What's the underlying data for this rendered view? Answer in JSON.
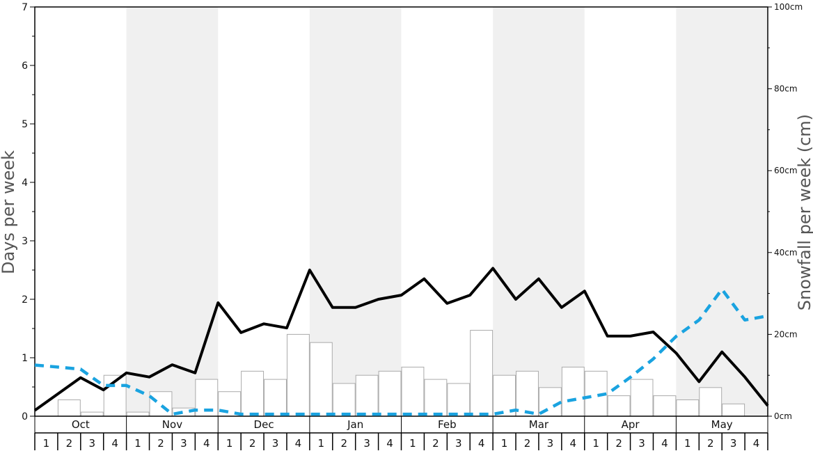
{
  "chart_data": {
    "type": "bar",
    "xlabel": "",
    "ylabel": "Days per week",
    "y2label": "Snowfall per week (cm)",
    "ylim": [
      0,
      7
    ],
    "y2lim": [
      0,
      100
    ],
    "yticks": [
      0,
      1,
      2,
      3,
      4,
      5,
      6,
      7
    ],
    "y2ticks": [
      0,
      20,
      40,
      60,
      80,
      100
    ],
    "y2tick_labels": [
      "0cm",
      "20cm",
      "40cm",
      "60cm",
      "80cm",
      "100cm"
    ],
    "months": [
      "Oct",
      "Nov",
      "Dec",
      "Jan",
      "Feb",
      "Mar",
      "Apr",
      "May"
    ],
    "week_labels": [
      "1",
      "2",
      "3",
      "4"
    ],
    "shaded_months": [
      "Nov",
      "Jan",
      "Mar",
      "May"
    ],
    "colors": {
      "shade": "#f0f0f0",
      "bar_edge": "#aaaaaa",
      "bar_fill": "#ffffff",
      "days_line": "#000000",
      "snow_line": "#1aa3e0"
    },
    "series": [
      {
        "axis": "left",
        "style": "bars",
        "values": [
          0,
          0.28,
          0.07,
          0.7,
          0.07,
          0.42,
          0.14,
          0.63,
          0.42,
          0.77,
          0.63,
          1.4,
          1.26,
          0.56,
          0.7,
          0.77,
          0.84,
          0.63,
          0.56,
          1.47,
          0.7,
          0.77,
          0.49,
          0.84,
          0.77,
          0.35,
          0.63,
          0.35,
          0.28,
          0.49,
          0.21,
          0
        ]
      },
      {
        "axis": "left",
        "style": "solid-line",
        "values": [
          0.1,
          0.38,
          0.66,
          0.45,
          0.74,
          0.67,
          0.88,
          0.74,
          1.94,
          1.43,
          1.58,
          1.51,
          2.5,
          1.86,
          1.86,
          2.0,
          2.07,
          2.35,
          1.93,
          2.07,
          2.53,
          2.0,
          2.35,
          1.86,
          2.14,
          1.37,
          1.37,
          1.44,
          1.08,
          0.59,
          1.1,
          0.67,
          0.18
        ]
      },
      {
        "axis": "right",
        "style": "dashed-line",
        "values": [
          12.5,
          12,
          11.5,
          7.5,
          7.5,
          5,
          0.5,
          1.5,
          1.5,
          0.5,
          0.5,
          0.5,
          0.5,
          0.5,
          0.5,
          0.5,
          0.5,
          0.5,
          0.5,
          0.5,
          0.5,
          1.5,
          0.5,
          3.5,
          4.5,
          5.5,
          9.5,
          14,
          19.5,
          23.5,
          31,
          23.5,
          24.5
        ]
      }
    ]
  }
}
